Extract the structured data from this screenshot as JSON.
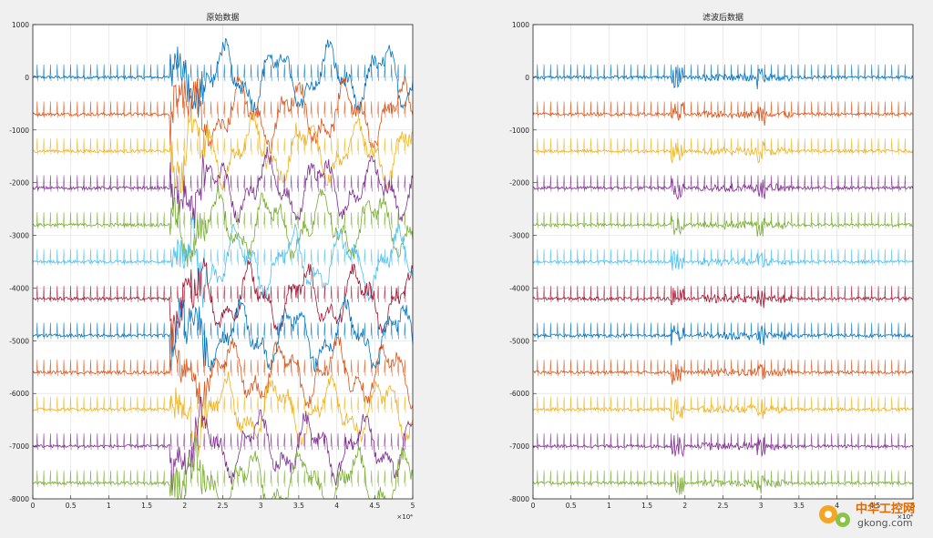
{
  "chart_data": [
    {
      "type": "line",
      "title": "原始数据",
      "xlim": [
        0,
        5
      ],
      "ylim": [
        -8000,
        1000
      ],
      "x_exponent_label": "×10⁴",
      "x_ticks": [
        "0",
        "0.5",
        "1",
        "1.5",
        "2",
        "2.5",
        "3",
        "3.5",
        "4",
        "4.5",
        "5"
      ],
      "y_ticks": [
        "1000",
        "0",
        "-1000",
        "-2000",
        "-3000",
        "-4000",
        "-5000",
        "-6000",
        "-7000",
        "-8000"
      ],
      "grid": true,
      "series_count": 12,
      "series_offsets": [
        0,
        -700,
        -1400,
        -2100,
        -2800,
        -3500,
        -4200,
        -4900,
        -5600,
        -6300,
        -7000,
        -7700
      ],
      "series_colors": [
        "#0072BD",
        "#D95319",
        "#EDB120",
        "#7E2F8E",
        "#77AC30",
        "#4DBEEE",
        "#A2142F",
        "#0072BD",
        "#D95319",
        "#EDB120",
        "#7E2F8E",
        "#77AC30"
      ],
      "artifact_region": [
        1.8,
        5
      ],
      "noise_level": "high"
    },
    {
      "type": "line",
      "title": "滤波后数据",
      "xlim": [
        0,
        5
      ],
      "ylim": [
        -8000,
        1000
      ],
      "x_exponent_label": "×10⁴",
      "x_ticks": [
        "0",
        "0.5",
        "1",
        "1.5",
        "2",
        "2.5",
        "3",
        "3.5",
        "4",
        "4.5",
        "5"
      ],
      "y_ticks": [
        "1000",
        "0",
        "-1000",
        "-2000",
        "-3000",
        "-4000",
        "-5000",
        "-6000",
        "-7000",
        "-8000"
      ],
      "grid": true,
      "series_count": 12,
      "series_offsets": [
        0,
        -700,
        -1400,
        -2100,
        -2800,
        -3500,
        -4200,
        -4900,
        -5600,
        -6300,
        -7000,
        -7700
      ],
      "series_colors": [
        "#0072BD",
        "#D95319",
        "#EDB120",
        "#7E2F8E",
        "#77AC30",
        "#4DBEEE",
        "#A2142F",
        "#0072BD",
        "#D95319",
        "#EDB120",
        "#7E2F8E",
        "#77AC30"
      ],
      "artifact_region": [
        1.8,
        2.0
      ],
      "noise_level": "low"
    }
  ],
  "watermark": {
    "line1": "中华工控网",
    "line2": "gkong.com"
  }
}
